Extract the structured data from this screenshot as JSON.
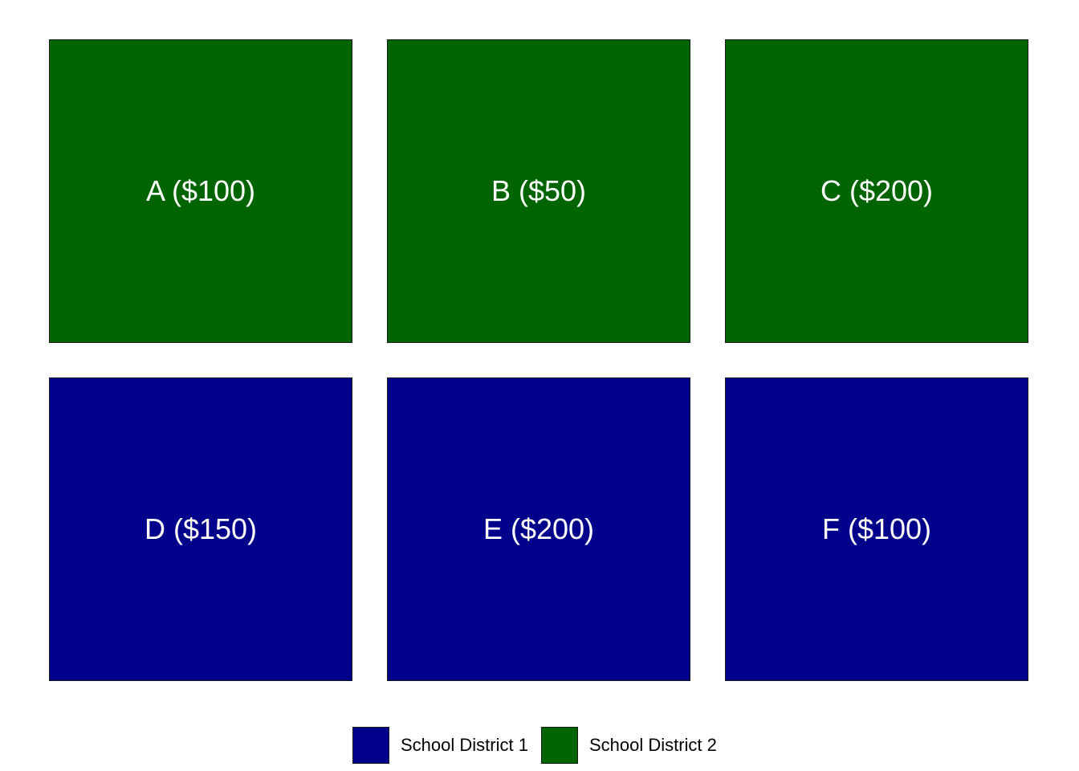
{
  "colors": {
    "district_1": "#00008b",
    "district_2": "#006400"
  },
  "tiles": [
    {
      "label": "A ($100)",
      "district": "district_2"
    },
    {
      "label": "B ($50)",
      "district": "district_2"
    },
    {
      "label": "C ($200)",
      "district": "district_2"
    },
    {
      "label": "D ($150)",
      "district": "district_1"
    },
    {
      "label": "E ($200)",
      "district": "district_1"
    },
    {
      "label": "F ($100)",
      "district": "district_1"
    }
  ],
  "legend": [
    {
      "label": "School District 1",
      "district": "district_1"
    },
    {
      "label": "School District 2",
      "district": "district_2"
    }
  ]
}
